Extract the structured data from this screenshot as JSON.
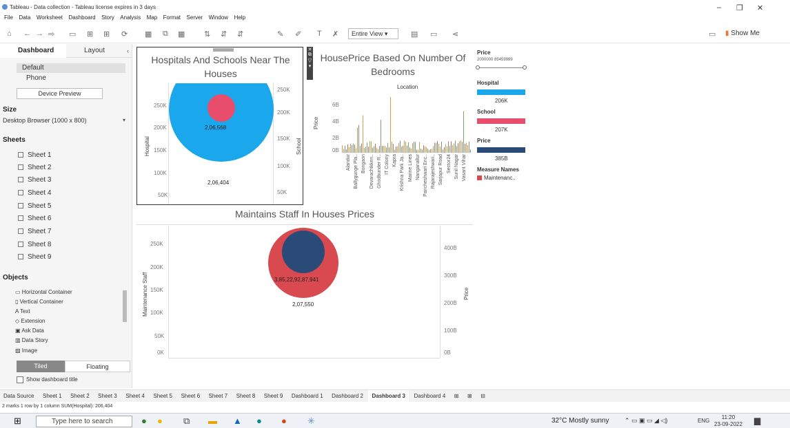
{
  "window": {
    "title": "Tableau - Data collection - Tableau license expires in 3 days",
    "minimize": "–",
    "restore": "❐",
    "close": "✕"
  },
  "menu": [
    "File",
    "Data",
    "Worksheet",
    "Dashboard",
    "Story",
    "Analysis",
    "Map",
    "Format",
    "Server",
    "Window",
    "Help"
  ],
  "toolbar": {
    "fit": "Entire View",
    "fit_arrow": "▾",
    "show_me": "Show Me"
  },
  "left_tabs": {
    "dashboard": "Dashboard",
    "layout": "Layout"
  },
  "device": {
    "default": "Default",
    "phone": "Phone",
    "preview_button": "Device Preview"
  },
  "size": {
    "header": "Size",
    "value": "Desktop Browser (1000 x 800)"
  },
  "sheets": {
    "header": "Sheets",
    "items": [
      "Sheet 1",
      "Sheet 2",
      "Sheet 3",
      "Sheet 4",
      "Sheet 5",
      "Sheet 6",
      "Sheet 7",
      "Sheet 8",
      "Sheet 9"
    ]
  },
  "objects": {
    "header": "Objects",
    "items": [
      "Horizontal Container",
      "Vertical Container",
      "Text",
      "Extension",
      "Ask Data",
      "Data Story",
      "Image"
    ]
  },
  "tiled": {
    "tiled": "Tiled",
    "floating": "Floating"
  },
  "show_title": "Show dashboard title",
  "chart1": {
    "title_line1": "Hospitals And Schools Near The",
    "title_line2": "Houses",
    "left_label": "Hospital",
    "right_label": "School",
    "left_ticks": [
      "250K",
      "200K",
      "150K",
      "100K",
      "50K"
    ],
    "right_ticks": [
      "250K",
      "200K",
      "150K",
      "100K",
      "50K"
    ],
    "inner_value": "2,06,568",
    "outer_value": "2,06,404"
  },
  "chart2": {
    "title_line1": "HousePrice Based On Number Of",
    "title_line2": "Bedrooms",
    "column_header": "Location",
    "y_label": "Price",
    "y_ticks": [
      "6B",
      "4B",
      "2B",
      "0B"
    ],
    "x_labels": [
      "Alandur",
      "Ballygunge Pla..",
      "Bongaon",
      "Devarachikken..",
      "Ghodbunder R..",
      "IT Colony",
      "Kapra",
      "Krishna Park Ja..",
      "Marine Lines",
      "Nanganallur",
      "Pancheshwari Enc..",
      "Rajarajeshwari..",
      "Sarjapur Road",
      "Sector24",
      "Sunil Nagar",
      "Vasant Vihar"
    ]
  },
  "chart3": {
    "title": "Maintains Staff In Houses Prices",
    "left_label": "Maintenance Staff",
    "right_label": "Price",
    "left_ticks": [
      "250K",
      "200K",
      "150K",
      "100K",
      "50K",
      "0K"
    ],
    "right_ticks": [
      "400B",
      "300B",
      "200B",
      "100B",
      "0B"
    ],
    "inner_value": "3,85,22,92,87,941",
    "outer_value": "2,07,550"
  },
  "legend": {
    "price_header": "Price",
    "price_range_min": "2000000",
    "price_range_max": "85459999",
    "hospital_header": "Hospital",
    "hospital_value": "206K",
    "school_header": "School",
    "school_value": "207K",
    "price2_header": "Price",
    "price2_value": "385B",
    "measure_header": "Measure Names",
    "measure_item": "Maintenanc.."
  },
  "colors": {
    "hospital": "#1aa7ec",
    "school": "#e84e6c",
    "price": "#2a4b78",
    "maintenance": "#d84a4f"
  },
  "bottom_tabs": [
    "Data Source",
    "Sheet 1",
    "Sheet 2",
    "Sheet 3",
    "Sheet 4",
    "Sheet 5",
    "Sheet 6",
    "Sheet 7",
    "Sheet 8",
    "Sheet 9",
    "Dashboard 1",
    "Dashboard 2",
    "Dashboard 3",
    "Dashboard 4"
  ],
  "status": "2 marks   1 row by 1 column   SUM(Hospital): 206,404",
  "taskbar": {
    "search": "Type here to search",
    "weather": "32°C  Mostly sunny",
    "lang": "ENG",
    "time": "11:20",
    "date": "23-09-2022"
  }
}
